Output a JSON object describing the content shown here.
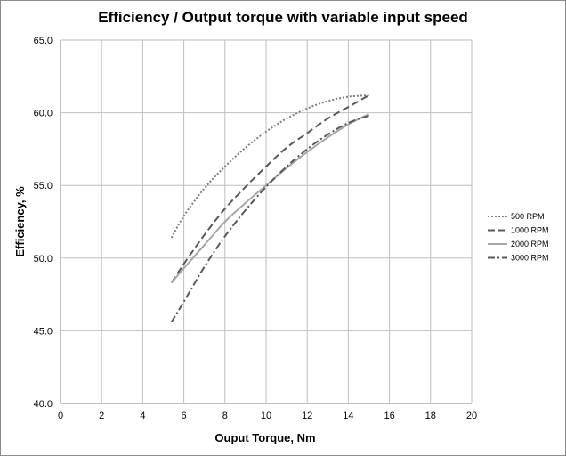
{
  "chart_data": {
    "type": "line",
    "title": "Efficiency / Output torque with variable input speed",
    "xlabel": "Ouput Torque, Nm",
    "ylabel": "Efficiency, %",
    "xlim": [
      0,
      20
    ],
    "ylim": [
      40,
      65
    ],
    "x_ticks": [
      "0",
      "2",
      "4",
      "6",
      "8",
      "10",
      "12",
      "14",
      "16",
      "18",
      "20"
    ],
    "y_ticks": [
      "40.0",
      "45.0",
      "50.0",
      "55.0",
      "60.0",
      "65.0"
    ],
    "grid": true,
    "legend_position": "right",
    "series": [
      {
        "name": "500 RPM",
        "color": "#7f7f7f",
        "dash": "2,2",
        "x": [
          5.4,
          6,
          7,
          8,
          9,
          10,
          11,
          12,
          13,
          14,
          15
        ],
        "y": [
          51.4,
          52.9,
          54.8,
          56.3,
          57.6,
          58.7,
          59.6,
          60.3,
          60.8,
          61.1,
          61.2
        ]
      },
      {
        "name": "1000 RPM",
        "color": "#595959",
        "dash": "8,4",
        "x": [
          5.4,
          6,
          7,
          8,
          9,
          10,
          11,
          12,
          13,
          14,
          15
        ],
        "y": [
          48.3,
          49.6,
          51.6,
          53.4,
          54.9,
          56.3,
          57.6,
          58.6,
          59.6,
          60.4,
          61.2
        ]
      },
      {
        "name": "2000 RPM",
        "color": "#a6a6a6",
        "dash": "",
        "x": [
          5.4,
          6,
          7,
          8,
          9,
          10,
          11,
          12,
          13,
          14,
          15
        ],
        "y": [
          48.3,
          49.3,
          50.9,
          52.5,
          53.8,
          55.0,
          56.2,
          57.3,
          58.3,
          59.2,
          59.9
        ]
      },
      {
        "name": "3000 RPM",
        "color": "#595959",
        "dash": "8,3,2,3",
        "x": [
          5.4,
          6,
          7,
          8,
          9,
          10,
          11,
          12,
          13,
          14,
          15
        ],
        "y": [
          45.6,
          47.0,
          49.4,
          51.5,
          53.3,
          54.9,
          56.3,
          57.5,
          58.5,
          59.3,
          59.8
        ]
      }
    ]
  }
}
